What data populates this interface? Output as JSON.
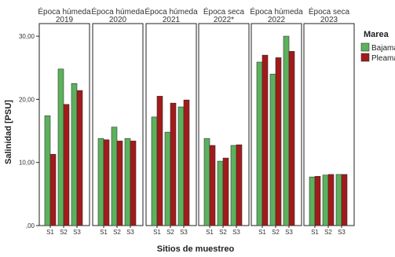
{
  "chart_data": {
    "type": "bar",
    "ylabel": "Salinidad [PSU]",
    "xlabel": "Sitios de muestreo",
    "ylim": [
      0,
      32
    ],
    "y_ticks": [
      0,
      10,
      20,
      30
    ],
    "y_tick_labels": [
      ",00",
      "10,00",
      "20,00",
      "30,00"
    ],
    "legend": {
      "title": "Marea",
      "placement": "right",
      "entries": [
        "Bajamar",
        "Pleamar"
      ]
    },
    "colors": {
      "Bajamar": "#5cb25c",
      "Pleamar": "#a31a1a"
    },
    "categories": [
      "S1",
      "S2",
      "S3"
    ],
    "panels": [
      {
        "title_line1": "Época húmeda",
        "title_line2": "2019",
        "series": [
          {
            "name": "Bajamar",
            "values": [
              17.4,
              24.8,
              22.5
            ]
          },
          {
            "name": "Pleamar",
            "values": [
              11.3,
              19.2,
              21.4
            ]
          }
        ]
      },
      {
        "title_line1": "Época húmeda",
        "title_line2": "2020",
        "series": [
          {
            "name": "Bajamar",
            "values": [
              13.8,
              15.6,
              13.8
            ]
          },
          {
            "name": "Pleamar",
            "values": [
              13.6,
              13.4,
              13.4
            ]
          }
        ]
      },
      {
        "title_line1": "Época húmeda",
        "title_line2": "2021",
        "series": [
          {
            "name": "Bajamar",
            "values": [
              17.2,
              14.8,
              18.8
            ]
          },
          {
            "name": "Pleamar",
            "values": [
              20.5,
              19.4,
              19.9
            ]
          }
        ]
      },
      {
        "title_line1": "Época seca",
        "title_line2": "2022*",
        "series": [
          {
            "name": "Bajamar",
            "values": [
              13.8,
              10.2,
              12.7
            ]
          },
          {
            "name": "Pleamar",
            "values": [
              12.7,
              10.7,
              12.8
            ]
          }
        ]
      },
      {
        "title_line1": "Época húmeda",
        "title_line2": "2022",
        "series": [
          {
            "name": "Bajamar",
            "values": [
              25.9,
              24.0,
              30.0
            ]
          },
          {
            "name": "Pleamar",
            "values": [
              27.0,
              26.6,
              27.6
            ]
          }
        ]
      },
      {
        "title_line1": "Época seca",
        "title_line2": "2023",
        "series": [
          {
            "name": "Bajamar",
            "values": [
              7.7,
              8.0,
              8.1
            ]
          },
          {
            "name": "Pleamar",
            "values": [
              7.8,
              8.1,
              8.1
            ]
          }
        ]
      }
    ]
  }
}
